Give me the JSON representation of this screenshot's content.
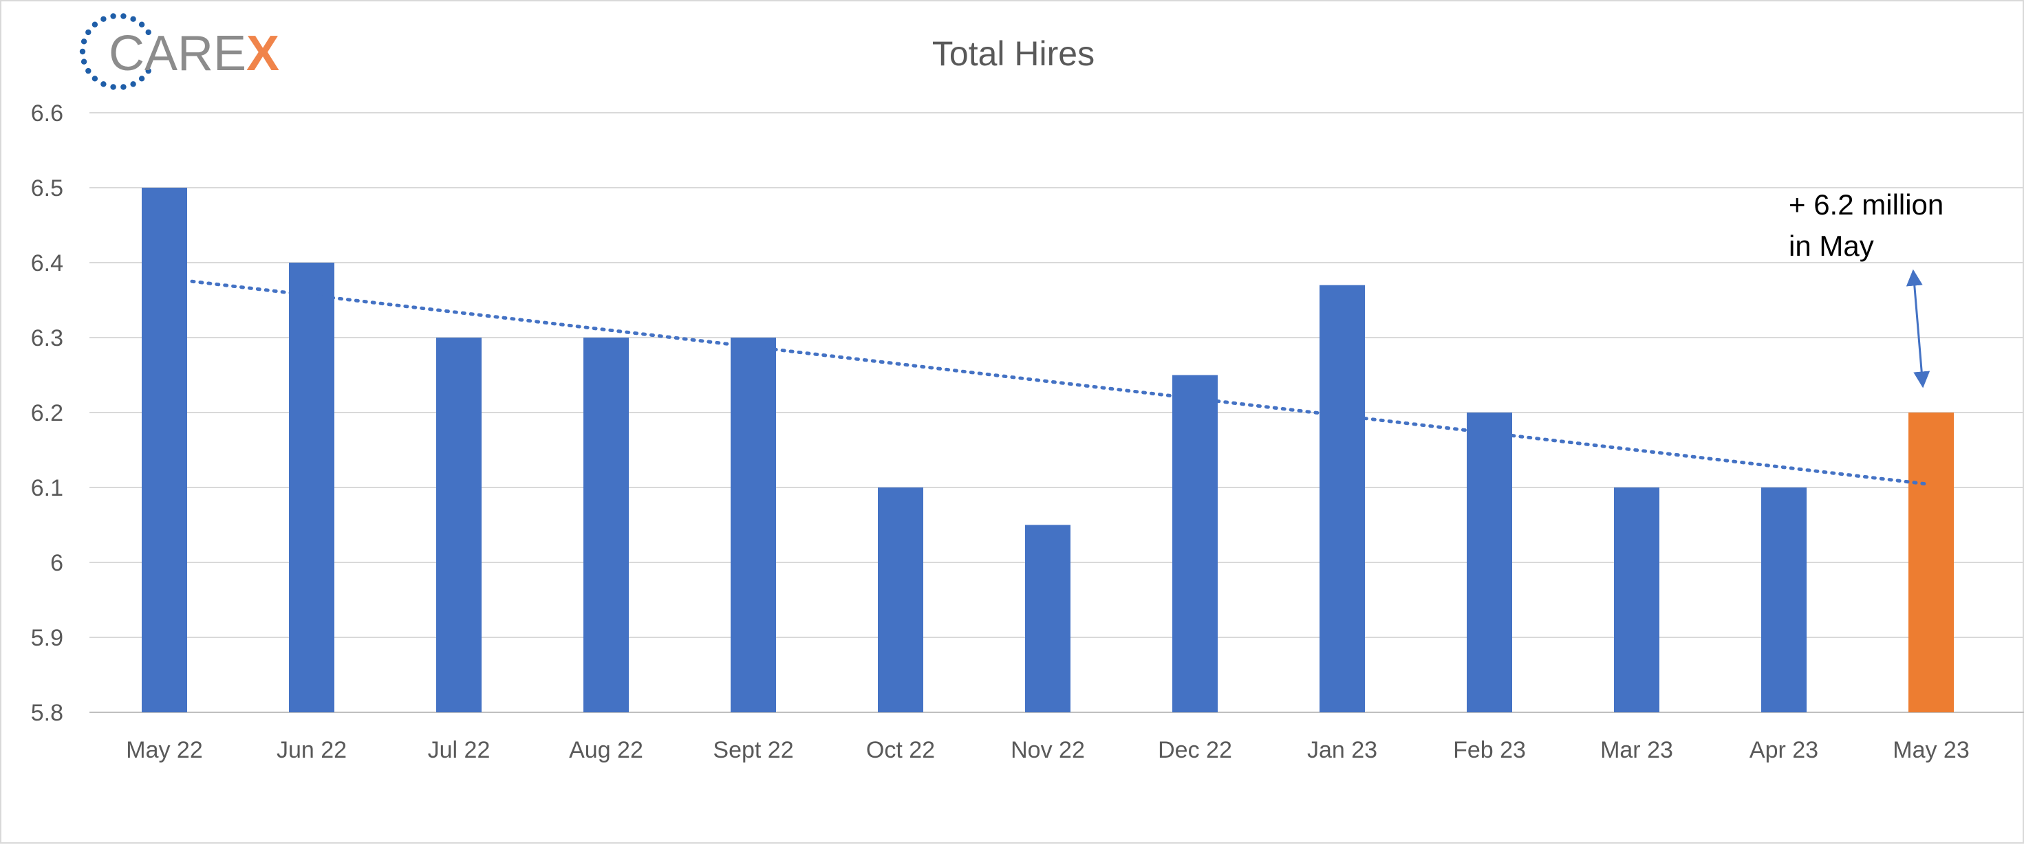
{
  "logo": {
    "text_main": "CARE",
    "text_accent": "X",
    "color_main": "#8c8c8c",
    "color_accent": "#f0844a",
    "ring_color": "#1f5ea8"
  },
  "chart_data": {
    "type": "bar",
    "title": "Total Hires",
    "xlabel": "",
    "ylabel": "",
    "categories": [
      "May 22",
      "Jun 22",
      "Jul 22",
      "Aug 22",
      "Sept 22",
      "Oct 22",
      "Nov 22",
      "Dec 22",
      "Jan 23",
      "Feb 23",
      "Mar 23",
      "Apr 23",
      "May 23"
    ],
    "values": [
      6.5,
      6.4,
      6.3,
      6.3,
      6.3,
      6.1,
      6.05,
      6.25,
      6.37,
      6.2,
      6.1,
      6.1,
      6.2
    ],
    "ylim": [
      5.8,
      6.6
    ],
    "yticks": [
      5.8,
      5.9,
      6.0,
      6.1,
      6.2,
      6.3,
      6.4,
      6.5,
      6.6
    ],
    "ytick_labels": [
      "5.8",
      "5.9",
      "6",
      "6.1",
      "6.2",
      "6.3",
      "6.4",
      "6.5",
      "6.6"
    ],
    "grid": true,
    "legend": "none",
    "bar_color": "#4472c4",
    "highlight_color": "#ed7d31",
    "highlight_index": 12,
    "trendline": {
      "type": "linear",
      "style": "dotted",
      "color": "#4472c4",
      "start_value": 6.375,
      "end_value": 6.105
    },
    "annotation": {
      "lines": [
        "+ 6.2 million",
        "in May"
      ],
      "target_index": 12,
      "arrow": "double"
    }
  }
}
